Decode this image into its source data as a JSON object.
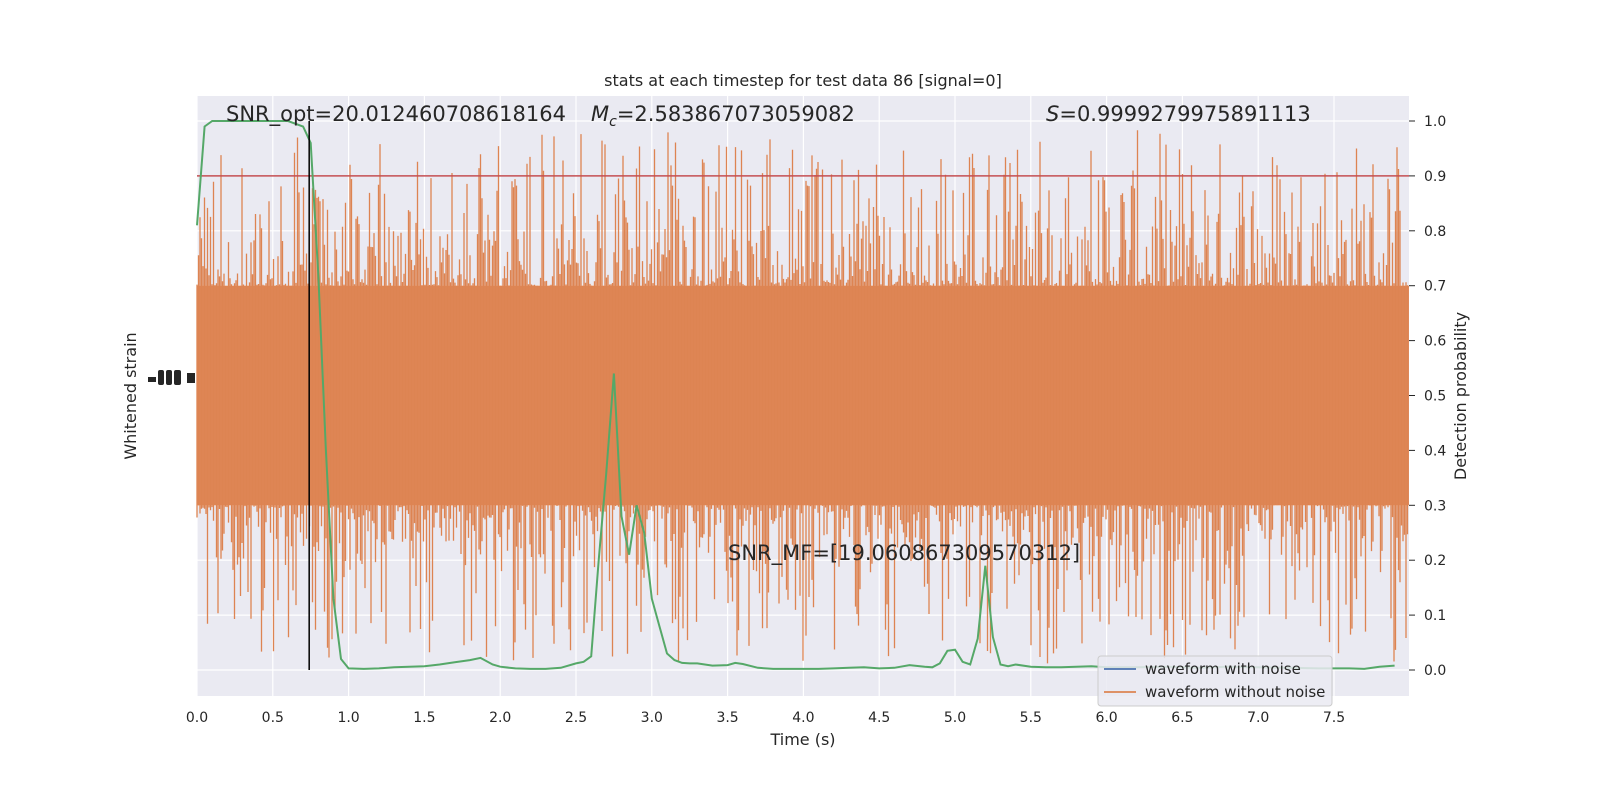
{
  "chart_data": {
    "type": "line",
    "title": "stats at each timestep for test data 86 [signal=0]",
    "xlabel": "Time (s)",
    "ylabel_left": "Whitened strain",
    "ylabel_right": "Detection probability",
    "xlim": [
      0,
      8.0
    ],
    "ylim_right": [
      -0.05,
      1.05
    ],
    "x_ticks": [
      "0.0",
      "0.5",
      "1.0",
      "1.5",
      "2.0",
      "2.5",
      "3.0",
      "3.5",
      "4.0",
      "4.5",
      "5.0",
      "5.5",
      "6.0",
      "6.5",
      "7.0",
      "7.5"
    ],
    "y_ticks_right": [
      "0.0",
      "0.1",
      "0.2",
      "0.3",
      "0.4",
      "0.5",
      "0.6",
      "0.7",
      "0.8",
      "0.9",
      "1.0"
    ],
    "grid": true,
    "legend_position": "lower-right",
    "annotations": {
      "snr_opt": "SNR_opt=20.012460708618164",
      "mc_symbol": "M",
      "mc_subscript": "c",
      "mc_value": "=2.583867073059082",
      "s_symbol": "S",
      "s_value": "=0.9999279975891113",
      "snr_mf": "SNR_MF=[19.060867309570312]"
    },
    "threshold": 0.9,
    "event_time": 0.74,
    "series": [
      {
        "name": "waveform with noise",
        "color": "#4c72b0"
      },
      {
        "name": "waveform without noise",
        "color": "#dd8452"
      }
    ],
    "detection_probability": {
      "color": "#55a868",
      "x": [
        0.0,
        0.05,
        0.1,
        0.2,
        0.3,
        0.4,
        0.5,
        0.6,
        0.7,
        0.75,
        0.8,
        0.85,
        0.9,
        0.95,
        1.0,
        1.1,
        1.2,
        1.3,
        1.4,
        1.5,
        1.6,
        1.7,
        1.8,
        1.87,
        1.95,
        2.0,
        2.1,
        2.2,
        2.3,
        2.4,
        2.5,
        2.55,
        2.6,
        2.65,
        2.7,
        2.75,
        2.8,
        2.85,
        2.9,
        2.95,
        3.0,
        3.05,
        3.1,
        3.15,
        3.2,
        3.25,
        3.3,
        3.4,
        3.5,
        3.55,
        3.6,
        3.7,
        3.8,
        3.9,
        4.0,
        4.1,
        4.2,
        4.3,
        4.4,
        4.5,
        4.6,
        4.7,
        4.8,
        4.85,
        4.9,
        4.95,
        5.0,
        5.05,
        5.1,
        5.15,
        5.2,
        5.25,
        5.3,
        5.35,
        5.4,
        5.5,
        5.6,
        5.7,
        5.8,
        5.9,
        6.0,
        6.2,
        6.4,
        6.6,
        6.8,
        7.0,
        7.2,
        7.4,
        7.6,
        7.7,
        7.8,
        7.9
      ],
      "y": [
        0.81,
        0.99,
        1.0,
        1.0,
        1.0,
        1.0,
        1.0,
        1.0,
        0.99,
        0.96,
        0.72,
        0.4,
        0.13,
        0.02,
        0.003,
        0.002,
        0.003,
        0.005,
        0.006,
        0.007,
        0.01,
        0.014,
        0.018,
        0.022,
        0.01,
        0.006,
        0.003,
        0.002,
        0.002,
        0.004,
        0.012,
        0.015,
        0.025,
        0.2,
        0.36,
        0.54,
        0.28,
        0.21,
        0.3,
        0.25,
        0.13,
        0.08,
        0.03,
        0.018,
        0.013,
        0.012,
        0.012,
        0.008,
        0.009,
        0.013,
        0.011,
        0.004,
        0.002,
        0.002,
        0.002,
        0.002,
        0.003,
        0.004,
        0.005,
        0.003,
        0.004,
        0.009,
        0.006,
        0.005,
        0.012,
        0.035,
        0.037,
        0.015,
        0.01,
        0.057,
        0.19,
        0.06,
        0.01,
        0.007,
        0.01,
        0.006,
        0.005,
        0.005,
        0.006,
        0.007,
        0.005,
        0.005,
        0.006,
        0.004,
        0.006,
        0.005,
        0.004,
        0.003,
        0.003,
        0.002,
        0.006,
        0.008
      ]
    },
    "waveform_without_noise": {
      "band_low": 0.3,
      "band_high": 0.7,
      "spike_max": 1.0,
      "spike_min": -0.02
    }
  }
}
